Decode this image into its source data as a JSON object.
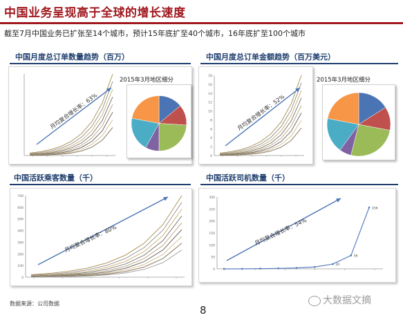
{
  "header": {
    "title": "中国业务呈现高于全球的增长速度",
    "subtitle": "截至7月中国业务已扩张至14个城市，预计15年底扩至40个城市，16年底扩至100个城市"
  },
  "panels": [
    {
      "title": "中国月度总订单数量趋势（百万）",
      "pie_title": "2015年3月地区细分"
    },
    {
      "title": "中国月度总订单金额趋势（百万美元）",
      "pie_title": "2015年3月地区细分"
    },
    {
      "title": "中国活跃乘客数量（千）"
    },
    {
      "title": "中国活跃司机数量（千）"
    }
  ],
  "footer": {
    "source": "数据来源：公司数据",
    "page_number": "8",
    "watermark": "大数据文摘"
  },
  "colors": {
    "title_red": "#a0181e",
    "navy": "#1f3e6e",
    "arrow_blue": "#4a74b4"
  },
  "chart_data": [
    {
      "type": "line",
      "title": "中国月度总订单数量趋势（百万）",
      "ylim": [
        0,
        4
      ],
      "annotation": "月均复合增长率：63%",
      "series_count": 8,
      "shape": "flat then sharp rise in final months"
    },
    {
      "type": "line",
      "title": "中国月度总订单金额趋势（百万美元）",
      "yticks": [
        0,
        2,
        4,
        6,
        8,
        10,
        12,
        14,
        16,
        18
      ],
      "annotation": "月均复合增长率：52%",
      "series_count": 8,
      "shape": "flat then sharp rise in final months"
    },
    {
      "type": "line",
      "title": "中国活跃乘客数量（千）",
      "yticks": [
        0,
        100,
        200,
        300,
        400,
        500,
        600,
        700
      ],
      "annotation": "月均复合增长率：80%",
      "series_count": 9,
      "shape": "flat then sharp rise in final months"
    },
    {
      "type": "line",
      "title": "中国活跃司机数量（千）",
      "yticks": [
        0,
        50,
        100,
        150,
        200,
        250,
        300
      ],
      "annotation": "月均复合增长率：54%",
      "values": [
        0,
        0,
        1,
        2,
        4,
        8,
        20,
        56,
        256
      ],
      "data_labels": [
        "",
        "",
        "",
        "",
        "",
        "",
        "20",
        "56",
        "256"
      ]
    },
    {
      "type": "pie",
      "title": "2015年3月地区细分",
      "colors": [
        "#4a74b4",
        "#c0504d",
        "#9bbb59",
        "#7f62a1",
        "#4bacc6",
        "#f79646"
      ],
      "values": [
        14,
        12,
        24,
        8,
        20,
        22
      ]
    },
    {
      "type": "pie",
      "title": "2015年3月地区细分",
      "colors": [
        "#4a74b4",
        "#c0504d",
        "#9bbb59",
        "#7f62a1",
        "#4bacc6",
        "#f79646"
      ],
      "values": [
        16,
        12,
        26,
        6,
        18,
        22
      ]
    }
  ]
}
